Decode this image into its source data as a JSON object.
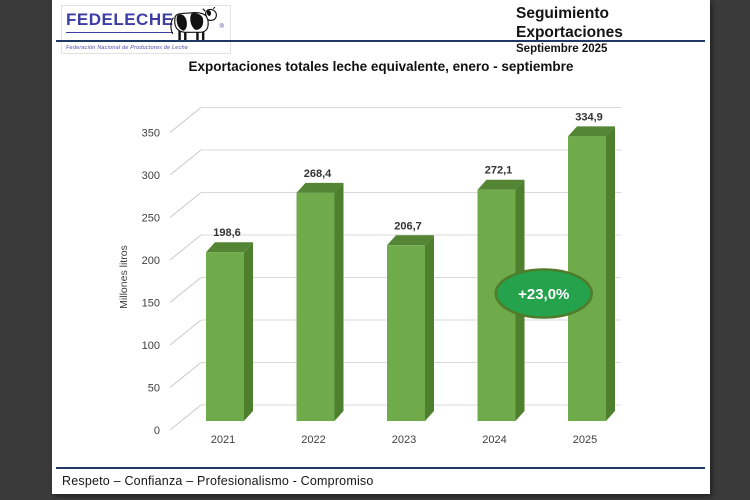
{
  "window": {
    "background": "#3a3a3a",
    "slide_background": "#ffffff"
  },
  "header": {
    "logo": {
      "wordmark": "FEDELECHE",
      "registered": "®",
      "tagline": "Federación Nacional de Productores de Leche",
      "color": "#3d3da6"
    },
    "title": "Seguimiento Exportaciones",
    "subtitle": "Septiembre 2025",
    "rule_color": "#1f3864"
  },
  "chart_data": {
    "type": "bar",
    "style": "3d-column",
    "title": "Exportaciones totales leche equivalente, enero - septiembre",
    "categories": [
      "2021",
      "2022",
      "2023",
      "2024",
      "2025"
    ],
    "values": [
      198.6,
      268.4,
      206.7,
      272.1,
      334.9
    ],
    "value_labels": [
      "198,6",
      "268,4",
      "206,7",
      "272,1",
      "334,9"
    ],
    "xlabel": "",
    "ylabel": "Millones litros",
    "ylim": [
      0,
      350
    ],
    "yticks": [
      0,
      50,
      100,
      150,
      200,
      250,
      300,
      350
    ],
    "grid": true,
    "legend": false,
    "bar_color": "#6faa4b",
    "bar_top_color": "#538534",
    "bar_side_color": "#4e7f2d",
    "gridline_color": "#d9d9d9",
    "annotation": {
      "text": "+23,0%",
      "between": [
        "2024",
        "2025"
      ],
      "y_value": 150,
      "fill": "#24a24c",
      "border": "#4f7c2b",
      "text_color": "#ffffff"
    }
  },
  "footer": {
    "motto": "Respeto – Confianza – Profesionalismo - Compromiso",
    "rule_color": "#1f3864"
  }
}
